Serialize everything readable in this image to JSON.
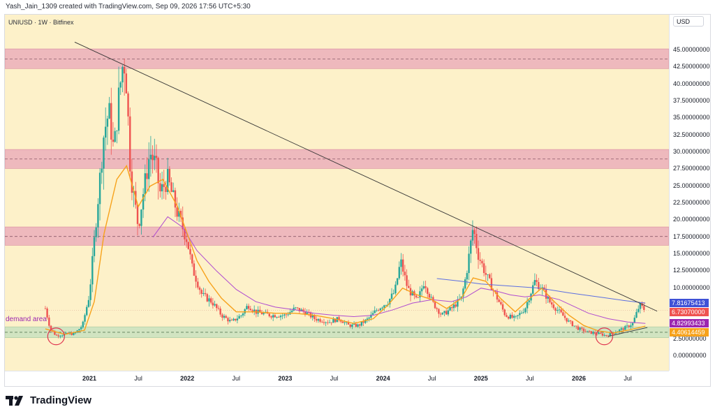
{
  "header": {
    "credit": "Yash_Jain_1309 created with TradingView.com, Sep 09, 2026 17:56 UTC+5:30"
  },
  "symbol_line": "UNIUSD · 1W · Bitfinex",
  "currency": "USD",
  "demand_label": "demand area",
  "logo_text": "TradingView",
  "colors": {
    "background": "#fdf1c9",
    "zone_red": "#e8a6b8",
    "zone_green": "#c9e2bf",
    "candle_up": "#26a69a",
    "candle_down": "#ef5350",
    "ma_orange": "#f7a21b",
    "ma_purple": "#b04bd0",
    "ma_blue": "#5b6ee1",
    "trendline": "#333333",
    "circle": "#e0344f"
  },
  "chart_data": {
    "type": "candlestick",
    "title": "UNIUSD · 1W · Bitfinex",
    "ylim": [
      -2.5,
      50
    ],
    "y_ticks": [
      "45.00000000",
      "42.50000000",
      "40.00000000",
      "37.50000000",
      "35.00000000",
      "32.50000000",
      "30.00000000",
      "27.50000000",
      "25.00000000",
      "22.50000000",
      "20.00000000",
      "17.50000000",
      "15.00000000",
      "12.50000000",
      "10.00000000",
      "2.50000000",
      "0.00000000"
    ],
    "x_ticks": [
      {
        "label": "2021",
        "t": 2021.0,
        "year": true
      },
      {
        "label": "Jul",
        "t": 2021.5,
        "year": false
      },
      {
        "label": "2022",
        "t": 2022.0,
        "year": true
      },
      {
        "label": "Jul",
        "t": 2022.5,
        "year": false
      },
      {
        "label": "2023",
        "t": 2023.0,
        "year": true
      },
      {
        "label": "Jul",
        "t": 2023.5,
        "year": false
      },
      {
        "label": "2024",
        "t": 2024.0,
        "year": true
      },
      {
        "label": "Jul",
        "t": 2024.5,
        "year": false
      },
      {
        "label": "2025",
        "t": 2025.0,
        "year": true
      },
      {
        "label": "Jul",
        "t": 2025.5,
        "year": false
      },
      {
        "label": "2026",
        "t": 2026.0,
        "year": true
      },
      {
        "label": "Jul",
        "t": 2026.5,
        "year": false
      }
    ],
    "price_tags": [
      {
        "label": "7.81675413",
        "value": 7.82,
        "color": "#3f51d6"
      },
      {
        "label": "6.73070000",
        "value": 6.73,
        "color": "#ef5350"
      },
      {
        "label": "4.82993433",
        "value": 4.83,
        "color": "#9c27b0"
      },
      {
        "label": "4.40614459",
        "value": 4.41,
        "color": "#f7a21b"
      }
    ],
    "zones": [
      {
        "y1": 42.3,
        "y2": 45.2,
        "color": "red",
        "dash": 43.7
      },
      {
        "y1": 27.6,
        "y2": 30.4,
        "color": "red",
        "dash": 29.0
      },
      {
        "y1": 16.3,
        "y2": 19.0,
        "color": "red",
        "dash": 17.6
      },
      {
        "y1": 2.7,
        "y2": 4.3,
        "color": "green",
        "dash": 3.5
      }
    ],
    "trendline": [
      [
        2020.85,
        46.2
      ],
      [
        2026.8,
        6.6
      ]
    ],
    "support_line": [
      [
        2026.3,
        2.9
      ],
      [
        2026.7,
        4.2
      ]
    ],
    "circles": [
      [
        2020.66,
        2.9
      ],
      [
        2026.26,
        2.9
      ]
    ],
    "price_series": [
      [
        2020.55,
        7.0
      ],
      [
        2020.6,
        4.0
      ],
      [
        2020.66,
        3.0
      ],
      [
        2020.75,
        3.2
      ],
      [
        2020.85,
        3.3
      ],
      [
        2020.93,
        4.5
      ],
      [
        2021.0,
        9.0
      ],
      [
        2021.05,
        17.0
      ],
      [
        2021.1,
        25.0
      ],
      [
        2021.15,
        33.0
      ],
      [
        2021.2,
        36.0
      ],
      [
        2021.25,
        30.0
      ],
      [
        2021.3,
        38.0
      ],
      [
        2021.35,
        44.0
      ],
      [
        2021.38,
        40.0
      ],
      [
        2021.42,
        27.0
      ],
      [
        2021.5,
        19.0
      ],
      [
        2021.55,
        24.0
      ],
      [
        2021.62,
        30.0
      ],
      [
        2021.68,
        28.0
      ],
      [
        2021.72,
        24.0
      ],
      [
        2021.8,
        26.0
      ],
      [
        2021.9,
        21.0
      ],
      [
        2022.0,
        17.0
      ],
      [
        2022.05,
        13.0
      ],
      [
        2022.1,
        11.0
      ],
      [
        2022.15,
        9.0
      ],
      [
        2022.25,
        8.0
      ],
      [
        2022.35,
        6.0
      ],
      [
        2022.45,
        5.0
      ],
      [
        2022.55,
        6.0
      ],
      [
        2022.62,
        7.5
      ],
      [
        2022.7,
        6.5
      ],
      [
        2022.85,
        6.0
      ],
      [
        2023.0,
        6.0
      ],
      [
        2023.1,
        7.0
      ],
      [
        2023.2,
        6.5
      ],
      [
        2023.3,
        5.5
      ],
      [
        2023.45,
        5.0
      ],
      [
        2023.55,
        5.5
      ],
      [
        2023.65,
        4.5
      ],
      [
        2023.75,
        4.5
      ],
      [
        2023.85,
        5.5
      ],
      [
        2023.95,
        7.0
      ],
      [
        2024.05,
        8.0
      ],
      [
        2024.12,
        9.5
      ],
      [
        2024.18,
        14.0
      ],
      [
        2024.25,
        10.0
      ],
      [
        2024.35,
        8.0
      ],
      [
        2024.42,
        11.0
      ],
      [
        2024.5,
        8.0
      ],
      [
        2024.6,
        6.0
      ],
      [
        2024.7,
        7.0
      ],
      [
        2024.8,
        8.5
      ],
      [
        2024.85,
        12.0
      ],
      [
        2024.92,
        19.0
      ],
      [
        2024.97,
        15.0
      ],
      [
        2025.05,
        12.0
      ],
      [
        2025.15,
        9.0
      ],
      [
        2025.25,
        6.0
      ],
      [
        2025.35,
        5.5
      ],
      [
        2025.45,
        7.0
      ],
      [
        2025.55,
        11.0
      ],
      [
        2025.62,
        10.0
      ],
      [
        2025.7,
        8.0
      ],
      [
        2025.8,
        6.5
      ],
      [
        2025.9,
        5.0
      ],
      [
        2026.0,
        4.0
      ],
      [
        2026.1,
        3.5
      ],
      [
        2026.2,
        3.3
      ],
      [
        2026.28,
        3.0
      ],
      [
        2026.38,
        3.6
      ],
      [
        2026.48,
        4.2
      ],
      [
        2026.55,
        4.8
      ],
      [
        2026.62,
        7.5
      ],
      [
        2026.68,
        6.7
      ]
    ],
    "ma_orange": [
      [
        2020.55,
        4.0
      ],
      [
        2020.75,
        3.2
      ],
      [
        2020.95,
        3.8
      ],
      [
        2021.05,
        8.0
      ],
      [
        2021.15,
        18.0
      ],
      [
        2021.28,
        26.0
      ],
      [
        2021.38,
        28.0
      ],
      [
        2021.5,
        22.0
      ],
      [
        2021.62,
        25.0
      ],
      [
        2021.75,
        26.0
      ],
      [
        2021.9,
        22.0
      ],
      [
        2022.0,
        18.0
      ],
      [
        2022.1,
        14.0
      ],
      [
        2022.22,
        11.0
      ],
      [
        2022.35,
        8.5
      ],
      [
        2022.5,
        6.5
      ],
      [
        2022.7,
        6.5
      ],
      [
        2022.9,
        6.3
      ],
      [
        2023.1,
        6.3
      ],
      [
        2023.3,
        6.0
      ],
      [
        2023.5,
        5.5
      ],
      [
        2023.7,
        4.8
      ],
      [
        2023.9,
        5.5
      ],
      [
        2024.05,
        7.5
      ],
      [
        2024.2,
        10.0
      ],
      [
        2024.35,
        9.0
      ],
      [
        2024.5,
        8.3
      ],
      [
        2024.65,
        7.0
      ],
      [
        2024.8,
        8.5
      ],
      [
        2024.92,
        11.5
      ],
      [
        2025.05,
        11.0
      ],
      [
        2025.2,
        8.5
      ],
      [
        2025.35,
        6.5
      ],
      [
        2025.5,
        8.5
      ],
      [
        2025.62,
        10.0
      ],
      [
        2025.75,
        8.0
      ],
      [
        2025.9,
        6.0
      ],
      [
        2026.05,
        4.5
      ],
      [
        2026.2,
        3.7
      ],
      [
        2026.35,
        3.4
      ],
      [
        2026.5,
        3.8
      ],
      [
        2026.68,
        4.4
      ]
    ],
    "ma_purple": [
      [
        2021.65,
        17.5
      ],
      [
        2021.8,
        20.5
      ],
      [
        2021.95,
        19.0
      ],
      [
        2022.1,
        15.5
      ],
      [
        2022.3,
        12.5
      ],
      [
        2022.5,
        9.8
      ],
      [
        2022.7,
        8.0
      ],
      [
        2022.9,
        7.2
      ],
      [
        2023.1,
        6.8
      ],
      [
        2023.3,
        6.3
      ],
      [
        2023.5,
        6.0
      ],
      [
        2023.7,
        5.8
      ],
      [
        2023.9,
        6.0
      ],
      [
        2024.1,
        6.8
      ],
      [
        2024.3,
        7.8
      ],
      [
        2024.5,
        8.3
      ],
      [
        2024.7,
        8.0
      ],
      [
        2024.85,
        8.7
      ],
      [
        2025.0,
        10.0
      ],
      [
        2025.15,
        9.6
      ],
      [
        2025.3,
        9.0
      ],
      [
        2025.45,
        8.7
      ],
      [
        2025.6,
        9.0
      ],
      [
        2025.8,
        8.3
      ],
      [
        2025.95,
        7.3
      ],
      [
        2026.1,
        6.3
      ],
      [
        2026.3,
        5.5
      ],
      [
        2026.5,
        5.0
      ],
      [
        2026.68,
        4.8
      ]
    ],
    "ma_blue": [
      [
        2024.55,
        11.4
      ],
      [
        2024.8,
        11.0
      ],
      [
        2025.0,
        10.6
      ],
      [
        2025.3,
        10.3
      ],
      [
        2025.6,
        10.0
      ],
      [
        2025.9,
        9.3
      ],
      [
        2026.2,
        8.7
      ],
      [
        2026.45,
        8.2
      ],
      [
        2026.68,
        7.8
      ]
    ]
  }
}
